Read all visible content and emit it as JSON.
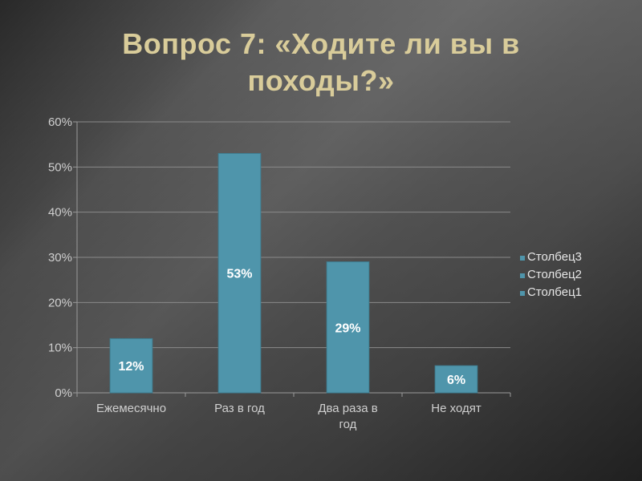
{
  "slide": {
    "title": "Вопрос 7: «Ходите ли вы в походы?»"
  },
  "chart_data": {
    "type": "bar",
    "categories": [
      "Ежемесячно",
      "Раз в год",
      "Два раза в год",
      "Не ходят"
    ],
    "category_lines": [
      [
        "Ежемесячно"
      ],
      [
        "Раз в год"
      ],
      [
        "Два раза в",
        "год"
      ],
      [
        "Не ходят"
      ]
    ],
    "values": [
      12,
      53,
      29,
      6
    ],
    "data_labels": [
      "12%",
      "53%",
      "29%",
      "6%"
    ],
    "ylim": [
      0,
      60
    ],
    "yticks": [
      0,
      10,
      20,
      30,
      40,
      50,
      60
    ],
    "ytick_labels": [
      "0%",
      "10%",
      "20%",
      "30%",
      "40%",
      "50%",
      "60%"
    ],
    "grid": true,
    "legend": {
      "position": "right",
      "entries": [
        "Столбец3",
        "Столбец2",
        "Столбец1"
      ]
    },
    "bar_color": "#4f95ab",
    "title": "",
    "xlabel": "",
    "ylabel": ""
  }
}
